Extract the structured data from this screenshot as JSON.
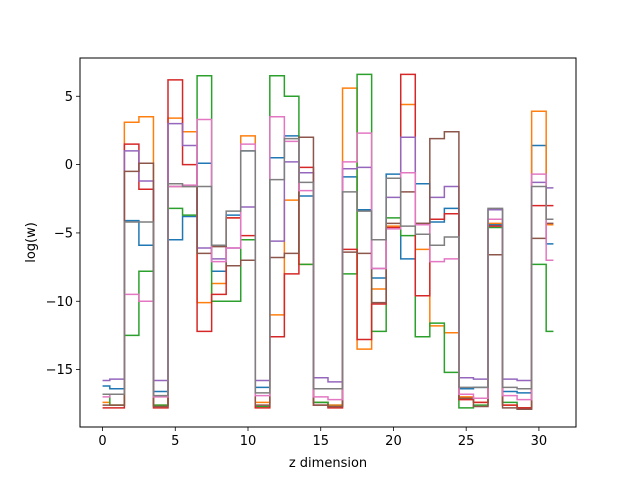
{
  "chart_data": {
    "type": "line",
    "step": true,
    "xlabel": "z dimension",
    "ylabel": "log(w)",
    "xlim": [
      -1.55,
      32.55
    ],
    "ylim": [
      -19.2,
      7.8
    ],
    "xticks": [
      0,
      5,
      10,
      15,
      20,
      25,
      30
    ],
    "yticks": [
      -15,
      -10,
      -5,
      0,
      5
    ],
    "x": [
      0,
      1,
      2,
      3,
      4,
      5,
      6,
      7,
      8,
      9,
      10,
      11,
      12,
      13,
      14,
      15,
      16,
      17,
      18,
      19,
      20,
      21,
      22,
      23,
      24,
      25,
      26,
      27,
      28,
      29,
      30,
      31
    ],
    "series": [
      {
        "color": "#1f77b4",
        "values": [
          -16.2,
          -16.4,
          -4.1,
          -5.9,
          -16.6,
          -5.5,
          -3.8,
          0.1,
          -7.8,
          -3.7,
          1.0,
          -16.3,
          0.5,
          2.1,
          -2.3,
          -17.4,
          -17.6,
          -0.9,
          -3.3,
          -8.3,
          -0.7,
          -6.9,
          -1.4,
          -4.2,
          -3.2,
          -16.4,
          -16.3,
          -4.4,
          -16.6,
          -16.7,
          1.4,
          -5.8
        ]
      },
      {
        "color": "#ff7f0e",
        "values": [
          -17.4,
          -17.6,
          3.1,
          3.5,
          -17.6,
          3.4,
          2.4,
          -10.1,
          -8.7,
          -3.9,
          2.1,
          -17.4,
          -11.0,
          -2.6,
          -7.3,
          -17.4,
          -17.6,
          5.6,
          -13.5,
          -9.1,
          -4.5,
          4.4,
          -6.2,
          -11.8,
          -12.3,
          -17.0,
          -17.4,
          -4.3,
          -17.6,
          -17.8,
          3.9,
          -4.4
        ]
      },
      {
        "color": "#2ca02c",
        "values": [
          -16.8,
          -17.6,
          -12.5,
          -7.8,
          -17.6,
          -3.2,
          -3.7,
          6.5,
          -10.0,
          -10.0,
          -5.5,
          -17.7,
          6.5,
          5.0,
          -7.3,
          -17.4,
          -17.7,
          -8.0,
          6.6,
          -12.2,
          -3.9,
          -5.2,
          -12.6,
          -11.6,
          -15.2,
          -17.8,
          -17.6,
          -4.6,
          -17.4,
          -17.8,
          -7.3,
          -12.2
        ]
      },
      {
        "color": "#d62728",
        "values": [
          -17.8,
          -17.8,
          1.5,
          -1.8,
          -17.8,
          6.2,
          0.0,
          -12.2,
          -9.5,
          -3.9,
          -5.2,
          -17.8,
          -12.6,
          -8.0,
          -0.2,
          -17.6,
          -17.8,
          -6.2,
          -12.8,
          -10.2,
          -4.6,
          6.6,
          -9.6,
          -4.0,
          -3.6,
          -17.2,
          -17.4,
          -4.5,
          -17.6,
          -17.8,
          -3.0,
          -3.0
        ]
      },
      {
        "color": "#9467bd",
        "values": [
          -15.8,
          -15.7,
          1.0,
          -1.2,
          -15.8,
          3.0,
          1.4,
          -6.1,
          -6.9,
          -6.1,
          -3.1,
          -15.8,
          -5.6,
          0.2,
          -0.6,
          -15.6,
          -15.9,
          -0.3,
          -0.2,
          -7.6,
          -2.4,
          2.0,
          -4.3,
          -2.4,
          -1.6,
          -15.6,
          -15.7,
          -3.3,
          -15.7,
          -15.8,
          -1.3,
          -1.7
        ]
      },
      {
        "color": "#8c564b",
        "values": [
          -17.6,
          -17.6,
          -0.5,
          0.1,
          -17.7,
          -1.6,
          -1.6,
          -6.5,
          -6.0,
          -7.4,
          -7.0,
          -17.6,
          -6.8,
          -6.5,
          2.0,
          -17.6,
          -17.7,
          -6.4,
          -6.5,
          -10.1,
          -4.3,
          -2.0,
          -4.3,
          1.9,
          2.4,
          -17.1,
          -17.7,
          -6.6,
          -17.8,
          -17.9,
          -5.4,
          -4.3
        ]
      },
      {
        "color": "#e377c2",
        "values": [
          -17.0,
          -16.8,
          -9.5,
          -10.0,
          -17.0,
          -1.6,
          -1.5,
          3.3,
          -7.1,
          -6.1,
          1.5,
          -16.9,
          3.5,
          1.7,
          -1.9,
          -17.0,
          -17.2,
          0.2,
          2.3,
          -7.6,
          -4.7,
          -0.6,
          -4.4,
          -7.1,
          -6.9,
          -16.8,
          -17.1,
          -4.0,
          -16.9,
          -17.2,
          -0.7,
          -7.0
        ]
      },
      {
        "color": "#7f7f7f",
        "values": [
          -16.8,
          -16.8,
          -4.2,
          -4.2,
          -16.9,
          -1.4,
          -1.6,
          -1.6,
          -5.9,
          -3.4,
          1.0,
          -16.7,
          -1.1,
          1.9,
          -1.3,
          -16.4,
          -16.4,
          -2.0,
          -3.4,
          -5.5,
          -1.0,
          -4.5,
          -5.1,
          -5.9,
          -5.3,
          -16.3,
          -16.3,
          -3.2,
          -16.3,
          -16.4,
          -1.6,
          -4.0
        ]
      }
    ]
  }
}
